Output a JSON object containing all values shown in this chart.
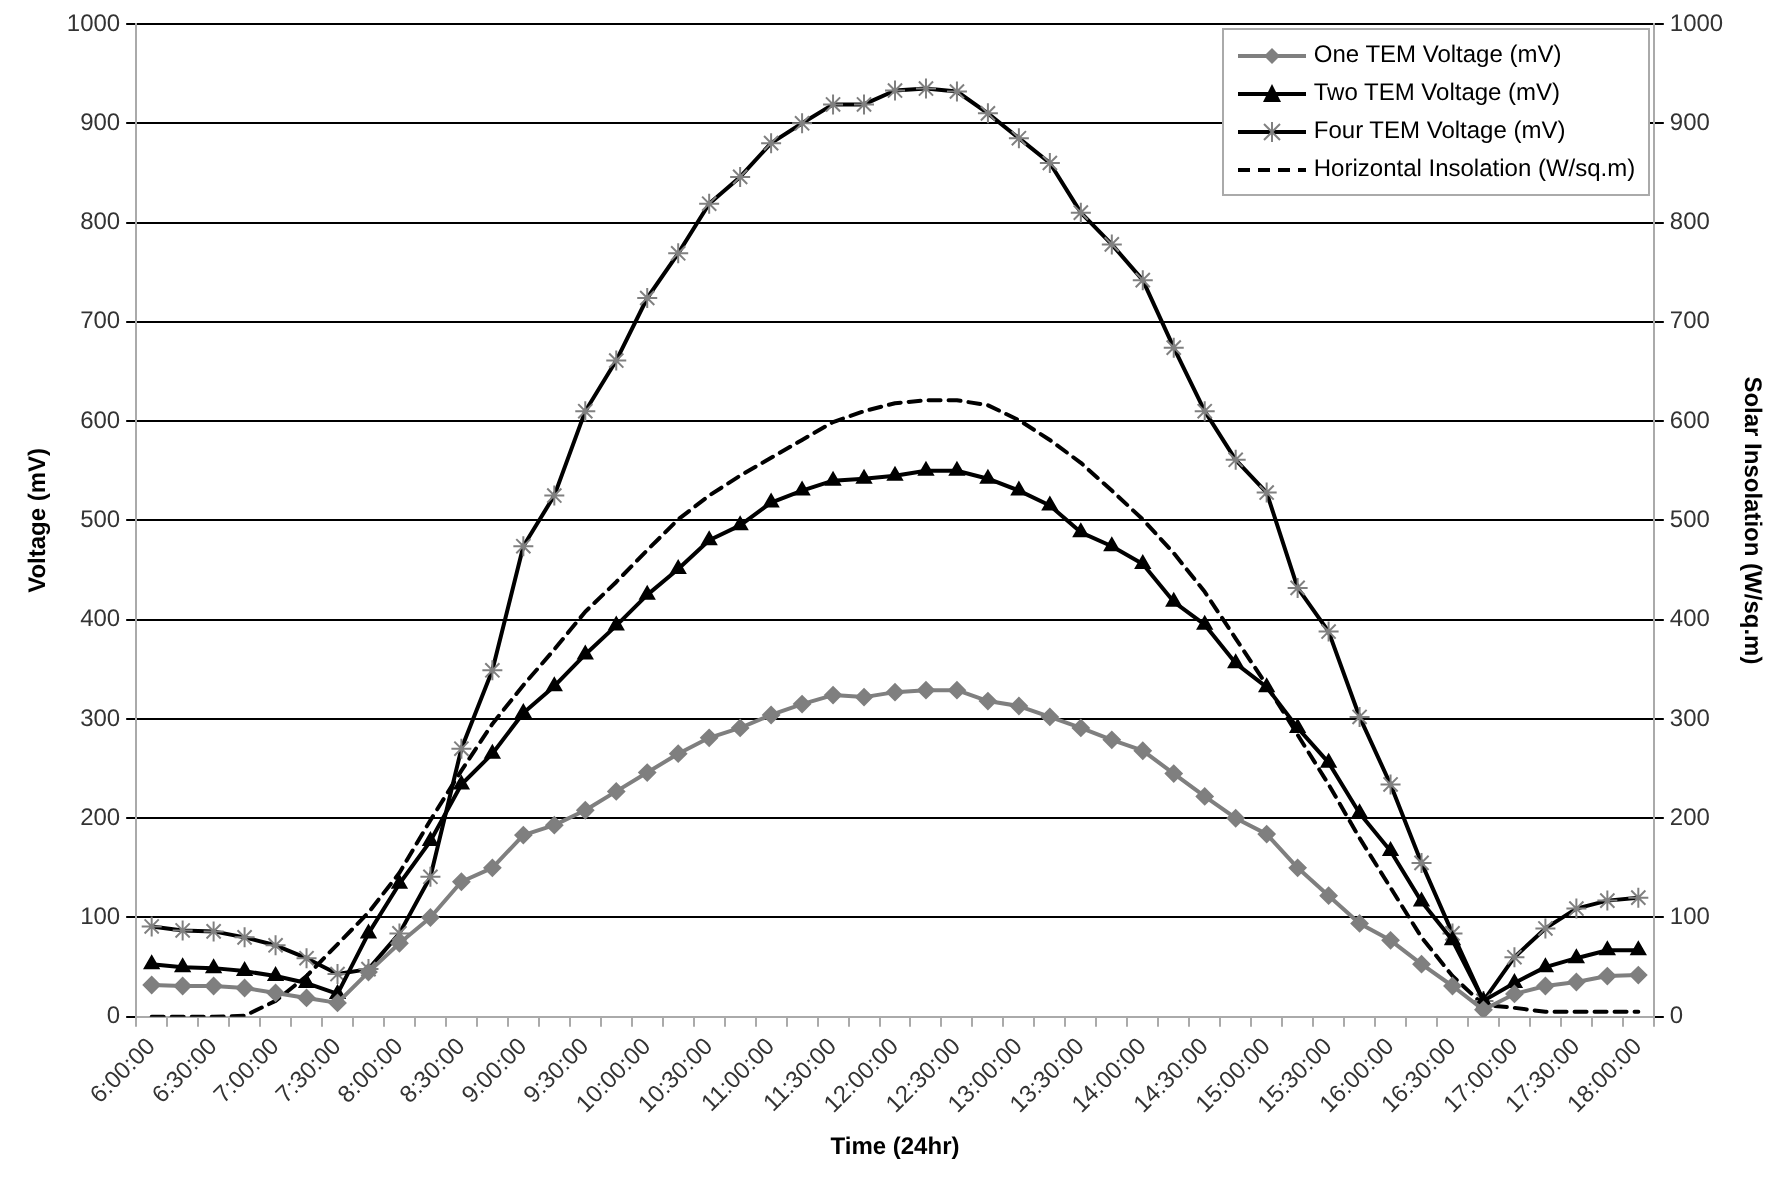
{
  "chart_data": {
    "type": "line",
    "xlabel": "Time (24hr)",
    "ylabel": "Voltage (mV)",
    "y2label": "Solar Insolation (W/sq.m)",
    "categories": [
      "6:00:00",
      null,
      "6:30:00",
      null,
      "7:00:00",
      null,
      "7:30:00",
      null,
      "8:00:00",
      null,
      "8:30:00",
      null,
      "9:00:00",
      null,
      "9:30:00",
      null,
      "10:00:00",
      null,
      "10:30:00",
      null,
      "11:00:00",
      null,
      "11:30:00",
      null,
      "12:00:00",
      null,
      "12:30:00",
      null,
      "13:00:00",
      null,
      "13:30:00",
      null,
      "14:00:00",
      null,
      "14:30:00",
      null,
      "15:00:00",
      null,
      "15:30:00",
      null,
      "16:00:00",
      null,
      "16:30:00",
      null,
      "17:00:00",
      null,
      "17:30:00",
      null,
      "18:00:00"
    ],
    "series": [
      {
        "name": "One TEM Voltage (mV)",
        "color": "#7f7f7f",
        "marker": "diamond",
        "line_style": "solid",
        "values": [
          32,
          31,
          31,
          29,
          24,
          19,
          14,
          45,
          74,
          100,
          136,
          150,
          183,
          193,
          208,
          227,
          246,
          265,
          281,
          291,
          304,
          315,
          324,
          322,
          327,
          329,
          329,
          318,
          313,
          302,
          291,
          279,
          268,
          245,
          222,
          200,
          184,
          150,
          122,
          94,
          77,
          53,
          31,
          7,
          23,
          31,
          35,
          41,
          42
        ]
      },
      {
        "name": "Two TEM Voltage (mV)",
        "color": "#000000",
        "marker": "triangle",
        "line_style": "solid",
        "values": [
          53,
          50,
          49,
          46,
          41,
          34,
          23,
          84,
          134,
          177,
          234,
          265,
          306,
          333,
          365,
          394,
          425,
          451,
          480,
          495,
          518,
          530,
          540,
          542,
          545,
          550,
          550,
          542,
          530,
          515,
          488,
          474,
          456,
          418,
          395,
          356,
          332,
          291,
          256,
          205,
          167,
          116,
          77,
          16,
          34,
          50,
          59,
          67,
          67
        ]
      },
      {
        "name": "Four TEM Voltage (mV)",
        "color": "#000000",
        "marker": "cross",
        "line_style": "solid",
        "values": [
          91,
          87,
          86,
          80,
          72,
          59,
          43,
          48,
          84,
          141,
          270,
          349,
          474,
          525,
          610,
          661,
          724,
          769,
          819,
          846,
          880,
          900,
          919,
          919,
          933,
          935,
          932,
          910,
          885,
          860,
          810,
          778,
          742,
          674,
          610,
          561,
          528,
          432,
          388,
          302,
          234,
          155,
          84,
          16,
          60,
          89,
          109,
          117,
          120
        ]
      },
      {
        "name": "Horizontal Insolation (W/sq.m)",
        "color": "#000000",
        "marker": "none",
        "line_style": "dashed",
        "axis": "y2",
        "values": [
          0,
          0,
          0,
          1,
          16,
          41,
          73,
          105,
          145,
          198,
          248,
          295,
          334,
          370,
          408,
          438,
          470,
          501,
          525,
          545,
          563,
          581,
          599,
          610,
          618,
          621,
          621,
          616,
          601,
          581,
          558,
          530,
          501,
          467,
          428,
          381,
          334,
          284,
          234,
          180,
          130,
          80,
          41,
          12,
          9,
          5,
          5,
          5,
          5
        ]
      }
    ],
    "ylim": [
      0,
      1000
    ],
    "yticks": [
      0,
      100,
      200,
      300,
      400,
      500,
      600,
      700,
      800,
      900,
      1000
    ],
    "y2lim": [
      0,
      1000
    ],
    "y2ticks": [
      0,
      100,
      200,
      300,
      400,
      500,
      600,
      700,
      800,
      900,
      1000
    ],
    "grid": "y",
    "legend": "top right"
  }
}
